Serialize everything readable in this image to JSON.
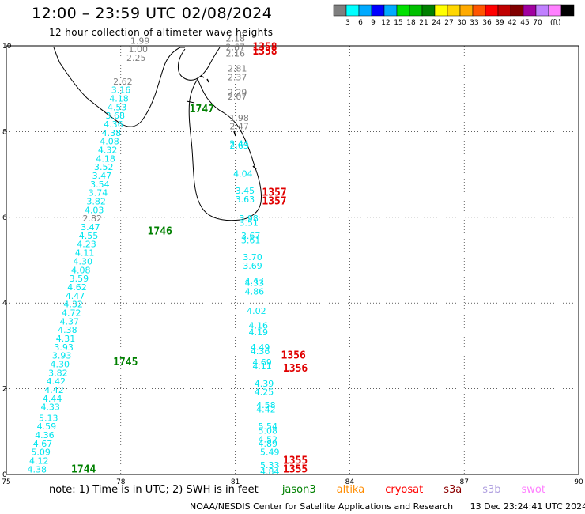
{
  "header": {
    "title": "12:00 – 23:59 UTC 02/08/2024",
    "subtitle": "12 hour collection of altimeter wave heights"
  },
  "colorbar": {
    "colors": [
      "#7f7f7f",
      "#00ffff",
      "#00aaff",
      "#0000ff",
      "#00aaff",
      "#00e000",
      "#00c000",
      "#008000",
      "#ffff00",
      "#ffd700",
      "#ffaa00",
      "#ff5500",
      "#ff0000",
      "#c00000",
      "#800000",
      "#a000a0",
      "#c080ff",
      "#ff80ff",
      "#000000"
    ],
    "labels": [
      "3",
      "6",
      "9",
      "12",
      "15",
      "18",
      "21",
      "24",
      "27",
      "30",
      "33",
      "36",
      "39",
      "42",
      "45",
      "70"
    ],
    "unit": "(ft)"
  },
  "footer": {
    "note_prefix": "note:  1) Time is in UTC;  2) SWH is in feet",
    "satellites": [
      {
        "name": "jason3",
        "color": "#008000"
      },
      {
        "name": "altika",
        "color": "#ff8c00"
      },
      {
        "name": "cryosat",
        "color": "#ff0000"
      },
      {
        "name": "s3a",
        "color": "#8b0000"
      },
      {
        "name": "s3b",
        "color": "#b0a0e0"
      },
      {
        "name": "swot",
        "color": "#ff80ff"
      }
    ],
    "credit": "NOAA/NESDIS Center for Satellite Applications and Research",
    "timestamp": "13 Dec 23:24:41 UTC 2024"
  },
  "chart_data": {
    "type": "scatter",
    "title": "12:00 – 23:59 UTC 02/08/2024",
    "xlim": [
      75,
      90
    ],
    "ylim": [
      0,
      10
    ],
    "x_ticks": [
      "75",
      "78",
      "81",
      "84",
      "87",
      "90"
    ],
    "y_ticks": [
      "0",
      "2",
      "4",
      "6",
      "8",
      "10"
    ],
    "grid": true,
    "wave_heights": [
      {
        "x": 75.55,
        "y": 0.05,
        "v": "4.38",
        "c": "cyan"
      },
      {
        "x": 75.6,
        "y": 0.25,
        "v": "4.12",
        "c": "cyan"
      },
      {
        "x": 75.65,
        "y": 0.45,
        "v": "5.09",
        "c": "cyan"
      },
      {
        "x": 75.7,
        "y": 0.65,
        "v": "4.67",
        "c": "cyan"
      },
      {
        "x": 75.75,
        "y": 0.85,
        "v": "4.36",
        "c": "cyan"
      },
      {
        "x": 75.8,
        "y": 1.05,
        "v": "4.59",
        "c": "cyan"
      },
      {
        "x": 75.85,
        "y": 1.25,
        "v": "5.13",
        "c": "cyan"
      },
      {
        "x": 75.9,
        "y": 1.5,
        "v": "4.33",
        "c": "cyan"
      },
      {
        "x": 75.95,
        "y": 1.7,
        "v": "4.44",
        "c": "cyan"
      },
      {
        "x": 76.0,
        "y": 1.9,
        "v": "4.42",
        "c": "cyan"
      },
      {
        "x": 76.05,
        "y": 2.1,
        "v": "4.42",
        "c": "cyan"
      },
      {
        "x": 76.1,
        "y": 2.3,
        "v": "3.82",
        "c": "cyan"
      },
      {
        "x": 76.15,
        "y": 2.5,
        "v": "4.30",
        "c": "cyan"
      },
      {
        "x": 76.2,
        "y": 2.7,
        "v": "3.93",
        "c": "cyan"
      },
      {
        "x": 76.25,
        "y": 2.9,
        "v": "3.93",
        "c": "cyan"
      },
      {
        "x": 76.3,
        "y": 3.1,
        "v": "4.31",
        "c": "cyan"
      },
      {
        "x": 76.35,
        "y": 3.3,
        "v": "4.38",
        "c": "cyan"
      },
      {
        "x": 76.4,
        "y": 3.5,
        "v": "4.37",
        "c": "cyan"
      },
      {
        "x": 76.45,
        "y": 3.7,
        "v": "4.72",
        "c": "cyan"
      },
      {
        "x": 76.5,
        "y": 3.9,
        "v": "4.32",
        "c": "cyan"
      },
      {
        "x": 76.55,
        "y": 4.1,
        "v": "4.47",
        "c": "cyan"
      },
      {
        "x": 76.6,
        "y": 4.3,
        "v": "4.62",
        "c": "cyan"
      },
      {
        "x": 76.65,
        "y": 4.5,
        "v": "3.59",
        "c": "cyan"
      },
      {
        "x": 76.7,
        "y": 4.7,
        "v": "4.08",
        "c": "cyan"
      },
      {
        "x": 76.75,
        "y": 4.9,
        "v": "4.30",
        "c": "cyan"
      },
      {
        "x": 76.8,
        "y": 5.1,
        "v": "4.11",
        "c": "cyan"
      },
      {
        "x": 76.85,
        "y": 5.3,
        "v": "4.23",
        "c": "cyan"
      },
      {
        "x": 76.9,
        "y": 5.5,
        "v": "4.55",
        "c": "cyan"
      },
      {
        "x": 76.95,
        "y": 5.7,
        "v": "3.47",
        "c": "cyan"
      },
      {
        "x": 77.0,
        "y": 5.9,
        "v": "2.82",
        "c": "gray"
      },
      {
        "x": 77.05,
        "y": 6.1,
        "v": "4.03",
        "c": "cyan"
      },
      {
        "x": 77.1,
        "y": 6.3,
        "v": "3.82",
        "c": "cyan"
      },
      {
        "x": 77.15,
        "y": 6.5,
        "v": "3.74",
        "c": "cyan"
      },
      {
        "x": 77.2,
        "y": 6.7,
        "v": "3.54",
        "c": "cyan"
      },
      {
        "x": 77.25,
        "y": 6.9,
        "v": "3.47",
        "c": "cyan"
      },
      {
        "x": 77.3,
        "y": 7.1,
        "v": "3.52",
        "c": "cyan"
      },
      {
        "x": 77.35,
        "y": 7.3,
        "v": "4.18",
        "c": "cyan"
      },
      {
        "x": 77.4,
        "y": 7.5,
        "v": "4.32",
        "c": "cyan"
      },
      {
        "x": 77.45,
        "y": 7.7,
        "v": "4.08",
        "c": "cyan"
      },
      {
        "x": 77.5,
        "y": 7.9,
        "v": "4.38",
        "c": "cyan"
      },
      {
        "x": 77.55,
        "y": 8.1,
        "v": "4.36",
        "c": "cyan"
      },
      {
        "x": 77.6,
        "y": 8.3,
        "v": "3.68",
        "c": "cyan"
      },
      {
        "x": 77.65,
        "y": 8.5,
        "v": "4.53",
        "c": "cyan"
      },
      {
        "x": 77.7,
        "y": 8.7,
        "v": "4.18",
        "c": "cyan"
      },
      {
        "x": 77.75,
        "y": 8.9,
        "v": "3.16",
        "c": "cyan"
      },
      {
        "x": 77.8,
        "y": 9.1,
        "v": "2.62",
        "c": "gray"
      },
      {
        "x": 78.15,
        "y": 9.65,
        "v": "2.25",
        "c": "gray"
      },
      {
        "x": 78.2,
        "y": 9.85,
        "v": "1.00",
        "c": "gray"
      },
      {
        "x": 78.25,
        "y": 10.05,
        "v": "1.99",
        "c": "gray"
      },
      {
        "x": 80.75,
        "y": 10.1,
        "v": "2.18",
        "c": "gray"
      },
      {
        "x": 80.75,
        "y": 9.9,
        "v": "2.67",
        "c": "gray"
      },
      {
        "x": 80.75,
        "y": 9.75,
        "v": "2.16",
        "c": "gray"
      },
      {
        "x": 80.8,
        "y": 9.4,
        "v": "2.81",
        "c": "gray"
      },
      {
        "x": 80.8,
        "y": 9.2,
        "v": "2.37",
        "c": "gray"
      },
      {
        "x": 80.8,
        "y": 8.85,
        "v": "2.29",
        "c": "gray"
      },
      {
        "x": 80.8,
        "y": 8.75,
        "v": "2.07",
        "c": "gray"
      },
      {
        "x": 80.85,
        "y": 8.25,
        "v": "1.98",
        "c": "gray"
      },
      {
        "x": 80.85,
        "y": 8.05,
        "v": "2.47",
        "c": "gray"
      },
      {
        "x": 80.85,
        "y": 7.65,
        "v": "2.44",
        "c": "cyan"
      },
      {
        "x": 80.85,
        "y": 7.6,
        "v": "2.63",
        "c": "cyan"
      },
      {
        "x": 80.95,
        "y": 6.95,
        "v": "4.04",
        "c": "cyan"
      },
      {
        "x": 81.0,
        "y": 6.55,
        "v": "3.45",
        "c": "cyan"
      },
      {
        "x": 81.0,
        "y": 6.35,
        "v": "3.63",
        "c": "cyan"
      },
      {
        "x": 81.1,
        "y": 5.9,
        "v": "3.98",
        "c": "cyan"
      },
      {
        "x": 81.1,
        "y": 5.8,
        "v": "3.51",
        "c": "cyan"
      },
      {
        "x": 81.15,
        "y": 5.5,
        "v": "3.67",
        "c": "cyan"
      },
      {
        "x": 81.15,
        "y": 5.4,
        "v": "3.61",
        "c": "cyan"
      },
      {
        "x": 81.2,
        "y": 5.0,
        "v": "3.70",
        "c": "cyan"
      },
      {
        "x": 81.2,
        "y": 4.8,
        "v": "3.69",
        "c": "cyan"
      },
      {
        "x": 81.25,
        "y": 4.45,
        "v": "4.47",
        "c": "cyan"
      },
      {
        "x": 81.25,
        "y": 4.4,
        "v": "4.33",
        "c": "cyan"
      },
      {
        "x": 81.25,
        "y": 4.2,
        "v": "4.86",
        "c": "cyan"
      },
      {
        "x": 81.3,
        "y": 3.75,
        "v": "4.02",
        "c": "cyan"
      },
      {
        "x": 81.35,
        "y": 3.4,
        "v": "4.16",
        "c": "cyan"
      },
      {
        "x": 81.35,
        "y": 3.25,
        "v": "4.19",
        "c": "cyan"
      },
      {
        "x": 81.4,
        "y": 2.9,
        "v": "4.49",
        "c": "cyan"
      },
      {
        "x": 81.4,
        "y": 2.8,
        "v": "4.36",
        "c": "cyan"
      },
      {
        "x": 81.45,
        "y": 2.55,
        "v": "4.69",
        "c": "cyan"
      },
      {
        "x": 81.45,
        "y": 2.45,
        "v": "4.11",
        "c": "cyan"
      },
      {
        "x": 81.5,
        "y": 2.05,
        "v": "4.39",
        "c": "cyan"
      },
      {
        "x": 81.5,
        "y": 1.85,
        "v": "4.25",
        "c": "cyan"
      },
      {
        "x": 81.55,
        "y": 1.55,
        "v": "4.58",
        "c": "cyan"
      },
      {
        "x": 81.55,
        "y": 1.45,
        "v": "4.42",
        "c": "cyan"
      },
      {
        "x": 81.6,
        "y": 1.05,
        "v": "5.54",
        "c": "cyan"
      },
      {
        "x": 81.6,
        "y": 0.95,
        "v": "5.08",
        "c": "cyan"
      },
      {
        "x": 81.6,
        "y": 0.75,
        "v": "4.52",
        "c": "cyan"
      },
      {
        "x": 81.6,
        "y": 0.65,
        "v": "4.89",
        "c": "cyan"
      },
      {
        "x": 81.65,
        "y": 0.45,
        "v": "5.49",
        "c": "cyan"
      },
      {
        "x": 81.65,
        "y": 0.15,
        "v": "5.33",
        "c": "cyan"
      },
      {
        "x": 81.65,
        "y": 0.0,
        "v": "4.84",
        "c": "cyan"
      }
    ],
    "pass_times": [
      {
        "x": 76.7,
        "y": 0.05,
        "t": "1744",
        "c": "green"
      },
      {
        "x": 77.8,
        "y": 2.55,
        "t": "1745",
        "c": "green"
      },
      {
        "x": 78.7,
        "y": 5.6,
        "t": "1746",
        "c": "green"
      },
      {
        "x": 79.8,
        "y": 8.45,
        "t": "1747",
        "c": "green"
      },
      {
        "x": 82.25,
        "y": 0.25,
        "t": "1355",
        "c": "red"
      },
      {
        "x": 82.25,
        "y": 0.05,
        "t": "1355",
        "c": "red"
      },
      {
        "x": 82.2,
        "y": 2.7,
        "t": "1356",
        "c": "red"
      },
      {
        "x": 82.25,
        "y": 2.4,
        "t": "1356",
        "c": "red"
      },
      {
        "x": 81.7,
        "y": 6.5,
        "t": "1357",
        "c": "red"
      },
      {
        "x": 81.7,
        "y": 6.3,
        "t": "1357",
        "c": "red"
      },
      {
        "x": 81.45,
        "y": 9.9,
        "t": "1358",
        "c": "red"
      },
      {
        "x": 81.45,
        "y": 9.8,
        "t": "1358",
        "c": "red"
      }
    ]
  }
}
